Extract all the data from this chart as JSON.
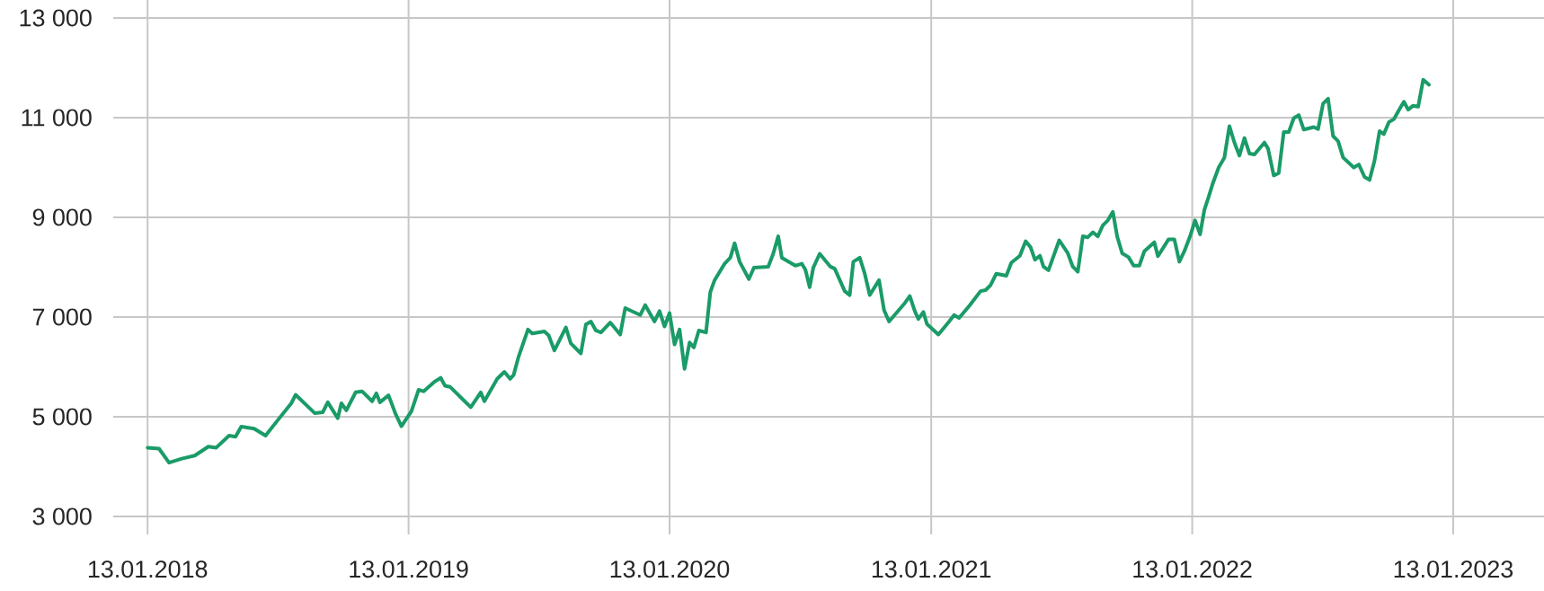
{
  "chart_data": {
    "type": "line",
    "x": [
      "2018-01-13",
      "2018-01-29",
      "2018-02-12",
      "2018-03-02",
      "2018-03-20",
      "2018-04-08",
      "2018-04-19",
      "2018-05-07",
      "2018-05-16",
      "2018-05-24",
      "2018-06-11",
      "2018-06-27",
      "2018-07-14",
      "2018-08-02",
      "2018-08-08",
      "2018-09-04",
      "2018-09-15",
      "2018-09-22",
      "2018-10-06",
      "2018-10-11",
      "2018-10-18",
      "2018-10-31",
      "2018-11-09",
      "2018-11-23",
      "2018-11-29",
      "2018-12-04",
      "2018-12-16",
      "2018-12-26",
      "2019-01-03",
      "2019-01-17",
      "2019-01-27",
      "2019-02-03",
      "2019-02-18",
      "2019-02-27",
      "2019-03-05",
      "2019-03-12",
      "2019-04-10",
      "2019-04-24",
      "2019-04-29",
      "2019-05-17",
      "2019-05-27",
      "2019-06-04",
      "2019-06-09",
      "2019-06-16",
      "2019-06-29",
      "2019-07-05",
      "2019-07-22",
      "2019-07-28",
      "2019-08-05",
      "2019-08-21",
      "2019-08-28",
      "2019-09-11",
      "2019-09-18",
      "2019-09-25",
      "2019-10-02",
      "2019-10-09",
      "2019-10-22",
      "2019-11-05",
      "2019-11-12",
      "2019-12-03",
      "2019-12-10",
      "2019-12-23",
      "2019-12-30",
      "2020-01-06",
      "2020-01-13",
      "2020-01-20",
      "2020-01-27",
      "2020-02-03",
      "2020-02-10",
      "2020-02-16",
      "2020-02-23",
      "2020-03-04",
      "2020-03-10",
      "2020-03-16",
      "2020-03-30",
      "2020-04-07",
      "2020-04-13",
      "2020-04-20",
      "2020-05-03",
      "2020-05-10",
      "2020-05-30",
      "2020-06-06",
      "2020-06-13",
      "2020-06-18",
      "2020-07-07",
      "2020-07-16",
      "2020-07-21",
      "2020-07-27",
      "2020-08-01",
      "2020-08-10",
      "2020-08-25",
      "2020-08-31",
      "2020-09-14",
      "2020-09-21",
      "2020-09-26",
      "2020-10-05",
      "2020-10-12",
      "2020-10-19",
      "2020-11-01",
      "2020-11-08",
      "2020-11-15",
      "2020-12-07",
      "2020-12-14",
      "2020-12-21",
      "2020-12-26",
      "2021-01-02",
      "2021-01-07",
      "2021-01-23",
      "2021-02-07",
      "2021-02-14",
      "2021-02-21",
      "2021-03-08",
      "2021-03-23",
      "2021-03-30",
      "2021-04-06",
      "2021-04-14",
      "2021-04-28",
      "2021-05-05",
      "2021-05-17",
      "2021-05-25",
      "2021-06-01",
      "2021-06-07",
      "2021-06-14",
      "2021-06-19",
      "2021-06-26",
      "2021-07-11",
      "2021-07-23",
      "2021-07-30",
      "2021-08-06",
      "2021-08-13",
      "2021-08-20",
      "2021-08-27",
      "2021-09-03",
      "2021-09-10",
      "2021-09-17",
      "2021-09-24",
      "2021-09-30",
      "2021-10-07",
      "2021-10-16",
      "2021-10-23",
      "2021-10-31",
      "2021-11-07",
      "2021-11-21",
      "2021-11-26",
      "2021-12-11",
      "2021-12-19",
      "2021-12-26",
      "2022-01-02",
      "2022-01-10",
      "2022-01-17",
      "2022-01-24",
      "2022-01-30",
      "2022-02-05",
      "2022-02-11",
      "2022-02-19",
      "2022-02-27",
      "2022-03-06",
      "2022-03-13",
      "2022-03-20",
      "2022-03-27",
      "2022-04-03",
      "2022-04-10",
      "2022-04-24",
      "2022-04-29",
      "2022-05-07",
      "2022-05-14",
      "2022-05-21",
      "2022-05-28",
      "2022-06-04",
      "2022-06-11",
      "2022-06-18",
      "2022-07-02",
      "2022-07-08",
      "2022-07-15",
      "2022-07-22",
      "2022-07-29",
      "2022-08-05",
      "2022-08-12",
      "2022-08-27",
      "2022-09-03",
      "2022-09-11",
      "2022-09-18",
      "2022-09-25",
      "2022-10-02",
      "2022-10-08",
      "2022-10-15",
      "2022-10-22",
      "2022-10-29",
      "2022-11-05",
      "2022-11-11",
      "2022-11-18",
      "2022-11-25",
      "2022-12-02",
      "2022-12-10"
    ],
    "series": [
      {
        "color": "#1a9b68",
        "values": [
          4380,
          4360,
          4080,
          4160,
          4220,
          4400,
          4380,
          4620,
          4600,
          4800,
          4760,
          4620,
          4930,
          5270,
          5440,
          5070,
          5090,
          5290,
          4970,
          5270,
          5130,
          5490,
          5510,
          5310,
          5470,
          5290,
          5430,
          5050,
          4810,
          5110,
          5540,
          5510,
          5700,
          5780,
          5620,
          5600,
          5190,
          5490,
          5310,
          5760,
          5900,
          5760,
          5840,
          6210,
          6750,
          6670,
          6710,
          6630,
          6330,
          6790,
          6470,
          6270,
          6850,
          6910,
          6730,
          6690,
          6890,
          6650,
          7180,
          7040,
          7240,
          6910,
          7120,
          6810,
          7080,
          6450,
          6750,
          5960,
          6490,
          6390,
          6730,
          6690,
          7500,
          7740,
          8070,
          8190,
          8480,
          8110,
          7760,
          7990,
          8010,
          8270,
          8620,
          8190,
          8030,
          8070,
          7950,
          7600,
          7990,
          8270,
          8010,
          7970,
          7520,
          7440,
          8110,
          8190,
          7870,
          7440,
          7740,
          7140,
          6910,
          7280,
          7420,
          7120,
          6960,
          7100,
          6860,
          6650,
          6910,
          7040,
          6980,
          7240,
          7520,
          7540,
          7640,
          7870,
          7830,
          8090,
          8230,
          8520,
          8400,
          8150,
          8230,
          8010,
          7940,
          8540,
          8280,
          8010,
          7910,
          8620,
          8600,
          8700,
          8620,
          8840,
          8940,
          9110,
          8620,
          8280,
          8200,
          8030,
          8030,
          8320,
          8500,
          8220,
          8560,
          8560,
          8110,
          8320,
          8620,
          8940,
          8660,
          9150,
          9410,
          9690,
          10000,
          10200,
          10830,
          10500,
          10240,
          10590,
          10280,
          10260,
          10500,
          10380,
          9840,
          9890,
          10710,
          10710,
          10990,
          11050,
          10760,
          10810,
          10770,
          11280,
          11380,
          10630,
          10530,
          10200,
          10000,
          10060,
          9810,
          9750,
          10140,
          10730,
          10670,
          10910,
          10970,
          11150,
          11320,
          11160,
          11240,
          11220,
          11760,
          11660
        ]
      }
    ],
    "xlim": [
      "2017-11-26",
      "2023-05-20"
    ],
    "xticks": [
      {
        "value": "2018-01-13",
        "label": "13.01.2018"
      },
      {
        "value": "2019-01-13",
        "label": "13.01.2019"
      },
      {
        "value": "2020-01-13",
        "label": "13.01.2020"
      },
      {
        "value": "2021-01-13",
        "label": "13.01.2021"
      },
      {
        "value": "2022-01-13",
        "label": "13.01.2022"
      },
      {
        "value": "2023-01-13",
        "label": "13.01.2023"
      }
    ],
    "ylim": [
      3000,
      13000
    ],
    "yticks": [
      {
        "value": 3000,
        "label": "3 000"
      },
      {
        "value": 5000,
        "label": "5 000"
      },
      {
        "value": 7000,
        "label": "7 000"
      },
      {
        "value": 9000,
        "label": "9 000"
      },
      {
        "value": 11000,
        "label": "11 000"
      },
      {
        "value": 13000,
        "label": "13 000"
      }
    ],
    "grid": true,
    "legend": false,
    "marker": "none",
    "line_style": "solid"
  }
}
